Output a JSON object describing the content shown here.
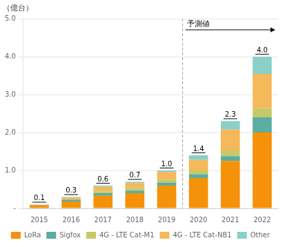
{
  "chart_data": {
    "type": "bar",
    "stacked": true,
    "ylabel": "（億台）",
    "categories": [
      "2015",
      "2016",
      "2017",
      "2018",
      "2019",
      "2020",
      "2021",
      "2022"
    ],
    "series": [
      {
        "name": "LoRa",
        "color": "#f5920a",
        "values": [
          0.08,
          0.18,
          0.33,
          0.4,
          0.6,
          0.8,
          1.25,
          2.0
        ]
      },
      {
        "name": "Sigfox",
        "color": "#5aada0",
        "values": [
          0.01,
          0.05,
          0.07,
          0.07,
          0.08,
          0.1,
          0.13,
          0.4
        ]
      },
      {
        "name": "4G - LTE Cat-M1",
        "color": "#c8c86a",
        "values": [
          0.0,
          0.01,
          0.05,
          0.06,
          0.08,
          0.1,
          0.15,
          0.25
        ]
      },
      {
        "name": "4G - LTE Cat-NB1",
        "color": "#f5b85a",
        "values": [
          0.01,
          0.05,
          0.12,
          0.14,
          0.2,
          0.28,
          0.55,
          0.9
        ]
      },
      {
        "name": "Other",
        "color": "#8acfc8",
        "values": [
          0.0,
          0.01,
          0.03,
          0.03,
          0.04,
          0.12,
          0.22,
          0.45
        ]
      }
    ],
    "totals": {
      "values": [
        0.1,
        0.3,
        0.6,
        0.7,
        1.0,
        1.4,
        2.3,
        4.0
      ],
      "value_labels": [
        "0.1",
        "0.3",
        "0.6",
        "0.7",
        "1.0",
        "1.4",
        "2.3",
        "4.0"
      ]
    },
    "annotations": [
      {
        "text": "予測値",
        "x": "2020"
      }
    ],
    "ylim": [
      0,
      5.0
    ],
    "yticks": [
      {
        "value": 0,
        "label": "-"
      },
      {
        "value": 1.0,
        "label": "1.0"
      },
      {
        "value": 2.0,
        "label": "2.0"
      },
      {
        "value": 3.0,
        "label": "3.0"
      },
      {
        "value": 4.0,
        "label": "4.0"
      },
      {
        "value": 5.0,
        "label": "5.0"
      }
    ],
    "grid": true,
    "legend": "bottom"
  }
}
